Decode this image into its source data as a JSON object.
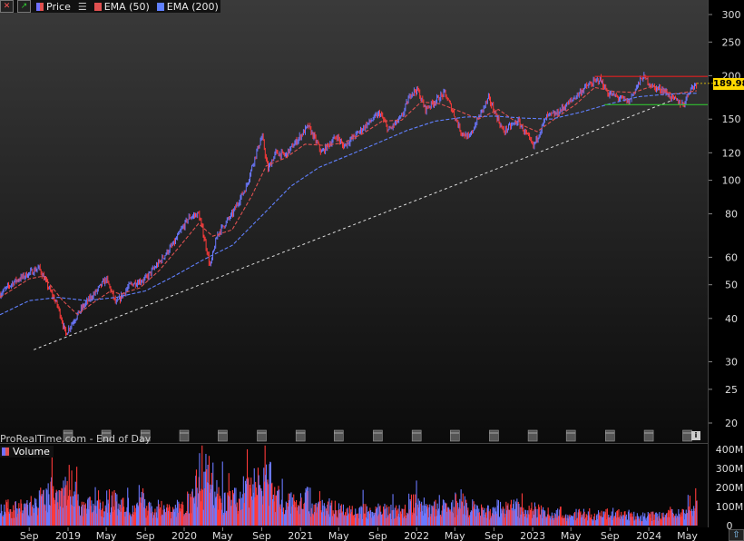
{
  "toolbar": {
    "price_label": "Price",
    "ema50_label": "EMA (50)",
    "ema200_label": "EMA (200)",
    "colors": {
      "price": "#7070ff",
      "ema50": "#e05050",
      "ema200": "#6080ff"
    }
  },
  "watermark": "ProRealTime.com - End of Day",
  "volume_label": "Volume",
  "last_price": "189.98",
  "chart_data": [
    {
      "type": "line",
      "title": "",
      "scale": "log",
      "price_axis_ticks": [
        300,
        250,
        200,
        150,
        120,
        100,
        80,
        60,
        50,
        40,
        30,
        25,
        20
      ],
      "x_ticks": [
        "Sep",
        "2019",
        "May",
        "Sep",
        "2020",
        "May",
        "Sep",
        "2021",
        "May",
        "Sep",
        "2022",
        "May",
        "Sep",
        "2023",
        "May",
        "Sep",
        "2024",
        "May"
      ],
      "x_tick_dates": [
        "2018-09",
        "2019-01",
        "2019-05",
        "2019-09",
        "2020-01",
        "2020-05",
        "2020-09",
        "2021-01",
        "2021-05",
        "2021-09",
        "2022-01",
        "2022-05",
        "2022-09",
        "2023-01",
        "2023-05",
        "2023-09",
        "2024-01",
        "2024-05"
      ],
      "series": [
        {
          "values": [
            [
              "2018-06-01",
              47
            ],
            [
              "2018-07-15",
              51
            ],
            [
              "2018-09-01",
              54
            ],
            [
              "2018-10-01",
              56
            ],
            [
              "2018-11-01",
              49
            ],
            [
              "2018-12-01",
              43
            ],
            [
              "2018-12-24",
              36
            ],
            [
              "2019-01-15",
              39
            ],
            [
              "2019-02-15",
              43
            ],
            [
              "2019-04-01",
              48
            ],
            [
              "2019-05-01",
              52
            ],
            [
              "2019-06-01",
              44
            ],
            [
              "2019-07-15",
              50
            ],
            [
              "2019-09-01",
              52
            ],
            [
              "2019-10-15",
              58
            ],
            [
              "2019-12-01",
              66
            ],
            [
              "2020-01-15",
              78
            ],
            [
              "2020-02-15",
              80
            ],
            [
              "2020-03-23",
              56
            ],
            [
              "2020-04-15",
              70
            ],
            [
              "2020-06-01",
              80
            ],
            [
              "2020-07-15",
              96
            ],
            [
              "2020-08-15",
              120
            ],
            [
              "2020-09-02",
              134
            ],
            [
              "2020-09-20",
              107
            ],
            [
              "2020-10-15",
              120
            ],
            [
              "2020-11-15",
              118
            ],
            [
              "2020-12-15",
              128
            ],
            [
              "2021-01-25",
              143
            ],
            [
              "2021-03-08",
              120
            ],
            [
              "2021-04-25",
              134
            ],
            [
              "2021-05-15",
              125
            ],
            [
              "2021-07-01",
              137
            ],
            [
              "2021-09-07",
              156
            ],
            [
              "2021-10-05",
              139
            ],
            [
              "2021-11-15",
              152
            ],
            [
              "2021-12-15",
              179
            ],
            [
              "2022-01-04",
              182
            ],
            [
              "2022-01-28",
              160
            ],
            [
              "2022-03-30",
              178
            ],
            [
              "2022-05-20",
              138
            ],
            [
              "2022-06-15",
              132
            ],
            [
              "2022-08-15",
              172
            ],
            [
              "2022-09-30",
              138
            ],
            [
              "2022-11-15",
              148
            ],
            [
              "2023-01-03",
              125
            ],
            [
              "2023-02-15",
              153
            ],
            [
              "2023-03-15",
              155
            ],
            [
              "2023-05-01",
              169
            ],
            [
              "2023-06-15",
              185
            ],
            [
              "2023-07-31",
              196
            ],
            [
              "2023-08-25",
              178
            ],
            [
              "2023-09-15",
              175
            ],
            [
              "2023-10-30",
              168
            ],
            [
              "2023-11-30",
              190
            ],
            [
              "2023-12-14",
              199
            ],
            [
              "2024-01-15",
              185
            ],
            [
              "2024-02-15",
              182
            ],
            [
              "2024-03-15",
              172
            ],
            [
              "2024-04-19",
              165
            ],
            [
              "2024-05-10",
              183
            ],
            [
              "2024-05-31",
              190
            ]
          ]
        },
        {
          "name": "EMA (50)",
          "values": [
            [
              "2018-06-01",
              46
            ],
            [
              "2018-09-01",
              52
            ],
            [
              "2018-10-15",
              53
            ],
            [
              "2018-12-15",
              45
            ],
            [
              "2019-01-31",
              41
            ],
            [
              "2019-03-15",
              44
            ],
            [
              "2019-05-15",
              48
            ],
            [
              "2019-06-15",
              47
            ],
            [
              "2019-08-15",
              49
            ],
            [
              "2019-10-15",
              55
            ],
            [
              "2019-12-15",
              64
            ],
            [
              "2020-02-15",
              75
            ],
            [
              "2020-03-31",
              69
            ],
            [
              "2020-05-31",
              72
            ],
            [
              "2020-07-31",
              90
            ],
            [
              "2020-09-15",
              110
            ],
            [
              "2020-11-15",
              116
            ],
            [
              "2021-01-15",
              127
            ],
            [
              "2021-03-15",
              126
            ],
            [
              "2021-05-15",
              128
            ],
            [
              "2021-07-15",
              136
            ],
            [
              "2021-09-15",
              148
            ],
            [
              "2021-11-15",
              149
            ],
            [
              "2022-01-15",
              168
            ],
            [
              "2022-03-15",
              166
            ],
            [
              "2022-05-15",
              158
            ],
            [
              "2022-07-15",
              150
            ],
            [
              "2022-09-15",
              160
            ],
            [
              "2022-11-15",
              146
            ],
            [
              "2023-01-15",
              138
            ],
            [
              "2023-03-15",
              151
            ],
            [
              "2023-05-15",
              165
            ],
            [
              "2023-07-15",
              185
            ],
            [
              "2023-09-15",
              180
            ],
            [
              "2023-11-15",
              179
            ],
            [
              "2024-01-15",
              187
            ],
            [
              "2024-03-15",
              177
            ],
            [
              "2024-05-31",
              181
            ]
          ]
        },
        {
          "name": "EMA (200)",
          "values": [
            [
              "2018-06-01",
              41
            ],
            [
              "2018-09-01",
              45
            ],
            [
              "2018-12-01",
              46
            ],
            [
              "2019-03-01",
              45
            ],
            [
              "2019-06-01",
              46
            ],
            [
              "2019-09-01",
              48
            ],
            [
              "2019-12-01",
              53
            ],
            [
              "2020-03-01",
              59
            ],
            [
              "2020-06-01",
              65
            ],
            [
              "2020-09-01",
              79
            ],
            [
              "2020-12-01",
              96
            ],
            [
              "2021-03-01",
              109
            ],
            [
              "2021-06-01",
              118
            ],
            [
              "2021-09-01",
              128
            ],
            [
              "2021-12-01",
              139
            ],
            [
              "2022-03-01",
              148
            ],
            [
              "2022-06-01",
              152
            ],
            [
              "2022-09-01",
              153
            ],
            [
              "2022-12-01",
              151
            ],
            [
              "2023-03-01",
              150
            ],
            [
              "2023-06-01",
              157
            ],
            [
              "2023-09-01",
              166
            ],
            [
              "2023-12-01",
              174
            ],
            [
              "2024-03-01",
              177
            ],
            [
              "2024-05-31",
              178
            ]
          ]
        }
      ],
      "annotations": {
        "resistance": {
          "value": 199,
          "from": "2023-07-15",
          "to": "2024-05-31",
          "color": "#e02020"
        },
        "support": {
          "value": 165,
          "from": "2023-08-15",
          "to": "2024-05-31",
          "color": "#30c030"
        },
        "trendline": {
          "from": [
            "2018-06-01",
            32
          ],
          "to": [
            "2024-03-15",
            170
          ],
          "color": "#dddddd"
        }
      }
    },
    {
      "type": "bar",
      "title": "Volume",
      "y_axis_ticks": [
        "400M",
        "300M",
        "200M",
        "100M",
        "0"
      ],
      "y_axis_values": [
        400,
        300,
        200,
        100,
        0
      ],
      "values_millions": [
        [
          "2018-06",
          110
        ],
        [
          "2018-07",
          100
        ],
        [
          "2018-08",
          120
        ],
        [
          "2018-09",
          130
        ],
        [
          "2018-10",
          160
        ],
        [
          "2018-11",
          220
        ],
        [
          "2018-12",
          230
        ],
        [
          "2019-01",
          260
        ],
        [
          "2019-02",
          120
        ],
        [
          "2019-03",
          130
        ],
        [
          "2019-04",
          110
        ],
        [
          "2019-05",
          160
        ],
        [
          "2019-06",
          120
        ],
        [
          "2019-07",
          100
        ],
        [
          "2019-08",
          160
        ],
        [
          "2019-09",
          110
        ],
        [
          "2019-10",
          110
        ],
        [
          "2019-11",
          100
        ],
        [
          "2019-12",
          110
        ],
        [
          "2020-01",
          160
        ],
        [
          "2020-02",
          220
        ],
        [
          "2020-03",
          330
        ],
        [
          "2020-04",
          200
        ],
        [
          "2020-05",
          150
        ],
        [
          "2020-06",
          160
        ],
        [
          "2020-07",
          220
        ],
        [
          "2020-08",
          260
        ],
        [
          "2020-09",
          280
        ],
        [
          "2020-10",
          180
        ],
        [
          "2020-11",
          140
        ],
        [
          "2020-12",
          150
        ],
        [
          "2021-01",
          170
        ],
        [
          "2021-02",
          120
        ],
        [
          "2021-03",
          140
        ],
        [
          "2021-04",
          110
        ],
        [
          "2021-05",
          100
        ],
        [
          "2021-06",
          90
        ],
        [
          "2021-07",
          95
        ],
        [
          "2021-08",
          80
        ],
        [
          "2021-09",
          100
        ],
        [
          "2021-10",
          85
        ],
        [
          "2021-11",
          110
        ],
        [
          "2021-12",
          140
        ],
        [
          "2022-01",
          130
        ],
        [
          "2022-02",
          110
        ],
        [
          "2022-03",
          110
        ],
        [
          "2022-04",
          110
        ],
        [
          "2022-05",
          140
        ],
        [
          "2022-06",
          110
        ],
        [
          "2022-07",
          90
        ],
        [
          "2022-08",
          85
        ],
        [
          "2022-09",
          110
        ],
        [
          "2022-10",
          110
        ],
        [
          "2022-11",
          110
        ],
        [
          "2022-12",
          90
        ],
        [
          "2023-01",
          100
        ],
        [
          "2023-02",
          80
        ],
        [
          "2023-03",
          80
        ],
        [
          "2023-04",
          65
        ],
        [
          "2023-05",
          70
        ],
        [
          "2023-06",
          75
        ],
        [
          "2023-07",
          60
        ],
        [
          "2023-08",
          70
        ],
        [
          "2023-09",
          75
        ],
        [
          "2023-10",
          70
        ],
        [
          "2023-11",
          60
        ],
        [
          "2023-12",
          60
        ],
        [
          "2024-01",
          60
        ],
        [
          "2024-02",
          60
        ],
        [
          "2024-03",
          90
        ],
        [
          "2024-04",
          70
        ],
        [
          "2024-05",
          130
        ]
      ]
    }
  ]
}
